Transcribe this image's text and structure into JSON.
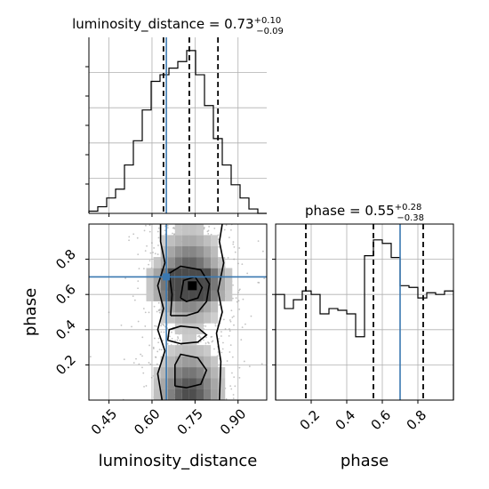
{
  "colors": {
    "truth": "#3a78b0",
    "hist": "#000000",
    "grid": "#b0b0b0",
    "quantile": "#000000"
  },
  "chart_data": [
    {
      "type": "histogram",
      "panel": "top-left",
      "title_main": "luminosity_distance = 0.73",
      "title_sup": "+0.10",
      "title_sub": "−0.09",
      "xlim": [
        0.38,
        1.0
      ],
      "bins": [
        0.38,
        0.411,
        0.442,
        0.473,
        0.504,
        0.535,
        0.566,
        0.597,
        0.628,
        0.659,
        0.69,
        0.721,
        0.752,
        0.783,
        0.814,
        0.845,
        0.876,
        0.907,
        0.938,
        0.969,
        1.0
      ],
      "counts": [
        1,
        3,
        7,
        11,
        22,
        33,
        47,
        60,
        63,
        66,
        69,
        74,
        63,
        49,
        34,
        22,
        13,
        7,
        2,
        0
      ],
      "ymax": 80,
      "quantiles": [
        0.64,
        0.73,
        0.83
      ],
      "truth": 0.65,
      "xticks": [
        0.45,
        0.6,
        0.75,
        0.9
      ]
    },
    {
      "type": "histogram",
      "panel": "bottom-right",
      "title_main": "phase = 0.55",
      "title_sup": "+0.28",
      "title_sub": "−0.38",
      "xlim": [
        0.0,
        1.0
      ],
      "bins": [
        0.0,
        0.05,
        0.1,
        0.15,
        0.2,
        0.25,
        0.3,
        0.35,
        0.4,
        0.45,
        0.5,
        0.55,
        0.6,
        0.65,
        0.7,
        0.75,
        0.8,
        0.85,
        0.9,
        0.95,
        1.0
      ],
      "counts": [
        60,
        52,
        57,
        62,
        60,
        49,
        52,
        51,
        49,
        36,
        82,
        91,
        89,
        81,
        65,
        64,
        58,
        61,
        60,
        62
      ],
      "ymax": 100,
      "quantiles": [
        0.17,
        0.55,
        0.83
      ],
      "truth": 0.7,
      "xticks": [
        0.2,
        0.4,
        0.6,
        0.8
      ]
    },
    {
      "type": "contour",
      "panel": "bottom-left",
      "xlabel": "luminosity_distance",
      "ylabel": "phase",
      "xlim": [
        0.38,
        1.0
      ],
      "ylim": [
        0.0,
        1.0
      ],
      "truth": [
        0.65,
        0.7
      ],
      "xticks": [
        0.45,
        0.6,
        0.75,
        0.9
      ],
      "yticks": [
        0.2,
        0.4,
        0.6,
        0.8
      ]
    },
    {
      "type": "axis-label",
      "panel": "bottom-right",
      "xlabel": "phase"
    }
  ]
}
